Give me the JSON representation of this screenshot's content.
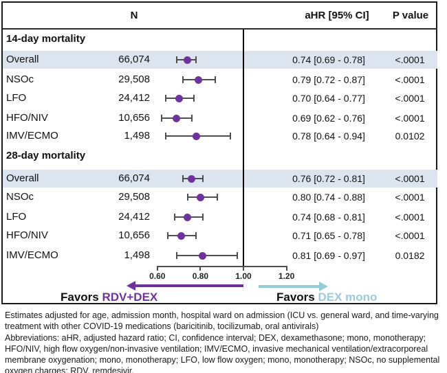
{
  "header": {
    "n_label": "N",
    "ahr_label": "aHR [95% CI]",
    "p_label": "P value"
  },
  "colors": {
    "dot": "#7030a0",
    "whisker": "#4d4d4d",
    "highlight": "#dbe4ef",
    "left_arrow": "#7030a0",
    "right_arrow": "#92cbd9",
    "left_accent_text": "#7030a0",
    "right_accent_text": "#9accd9"
  },
  "chart_data": {
    "type": "forest",
    "title": "",
    "xlabel": "adjusted hazard ratio",
    "axis": {
      "range": [
        0.6,
        1.2
      ],
      "ref_line": 1.0,
      "ticks": [
        0.6,
        0.8,
        1.0,
        1.2
      ],
      "tick_labels": [
        "0.60",
        "0.80",
        "1.00",
        "1.20"
      ]
    },
    "sections": [
      {
        "title": "14-day mortality",
        "rows": [
          {
            "label": "Overall",
            "n": "66,074",
            "hr": 0.74,
            "lo": 0.69,
            "hi": 0.78,
            "ahr_text": "0.74 [0.69 - 0.78]",
            "p": "<.0001",
            "highlight": true
          },
          {
            "label": "NSOc",
            "n": "29,508",
            "hr": 0.79,
            "lo": 0.72,
            "hi": 0.87,
            "ahr_text": "0.79 [0.72 - 0.87]",
            "p": "<.0001",
            "highlight": false
          },
          {
            "label": "LFO",
            "n": "24,412",
            "hr": 0.7,
            "lo": 0.64,
            "hi": 0.77,
            "ahr_text": "0.70 [0.64 - 0.77]",
            "p": "<.0001",
            "highlight": false
          },
          {
            "label": "HFO/NIV",
            "n": "10,656",
            "hr": 0.69,
            "lo": 0.62,
            "hi": 0.76,
            "ahr_text": "0.69 [0.62 - 0.76]",
            "p": "<.0001",
            "highlight": false
          },
          {
            "label": "IMV/ECMO",
            "n": "1,498",
            "hr": 0.78,
            "lo": 0.64,
            "hi": 0.94,
            "ahr_text": "0.78 [0.64 - 0.94]",
            "p": "0.0102",
            "highlight": false
          }
        ]
      },
      {
        "title": "28-day mortality",
        "rows": [
          {
            "label": "Overall",
            "n": "66,074",
            "hr": 0.76,
            "lo": 0.72,
            "hi": 0.81,
            "ahr_text": "0.76 [0.72 - 0.81]",
            "p": "<.0001",
            "highlight": true
          },
          {
            "label": "NSOc",
            "n": "29,508",
            "hr": 0.8,
            "lo": 0.74,
            "hi": 0.88,
            "ahr_text": "0.80 [0.74 - 0.88]",
            "p": "<.0001",
            "highlight": false
          },
          {
            "label": "LFO",
            "n": "24,412",
            "hr": 0.74,
            "lo": 0.68,
            "hi": 0.81,
            "ahr_text": "0.74 [0.68 - 0.81]",
            "p": "<.0001",
            "highlight": false
          },
          {
            "label": "HFO/NIV",
            "n": "10,656",
            "hr": 0.71,
            "lo": 0.65,
            "hi": 0.78,
            "ahr_text": "0.71 [0.65 - 0.78]",
            "p": "<.0001",
            "highlight": false
          },
          {
            "label": "IMV/ECMO",
            "n": "1,498",
            "hr": 0.81,
            "lo": 0.69,
            "hi": 0.97,
            "ahr_text": "0.81 [0.69 - 0.97]",
            "p": "0.0182",
            "highlight": false
          }
        ]
      }
    ]
  },
  "favors": {
    "left_plain": "Favors ",
    "left_accent": "RDV+DEX",
    "right_plain": "Favors ",
    "right_accent": "DEX mono"
  },
  "footnotes": {
    "adjustment": "Estimates adjusted for age, admission month, hospital ward on admission (ICU vs. general ward, and time-varying treatment with other COVID-19 medications (baricitinib, tocilizumab, oral antivirals)",
    "abbreviations": "Abbreviations: aHR, adjusted hazard ratio; CI, confidence interval; DEX, dexamethasone; mono, monotherapy; HFO/NIV, high flow oxygen/non-invasive ventilation; IMV/ECMO, invasive mechanical ventilation/extracorporeal membrane oxygenation; mono, monotherapy; LFO, low flow oxygen; mono, monotherapy; NSOc, no supplemental oxygen charges; RDV, remdesivir."
  }
}
